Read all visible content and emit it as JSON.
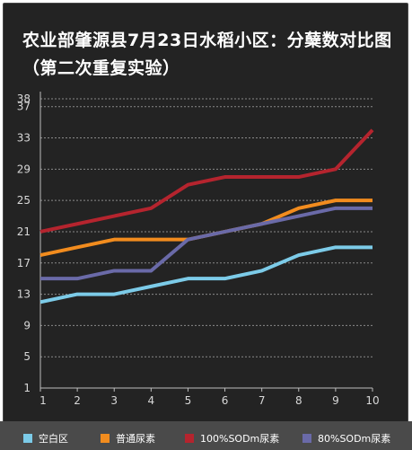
{
  "title": "农业部肇源县7月23日水稻小区：分蘖数对比图（第二次重复实验）",
  "chart_data": {
    "type": "line",
    "title": "农业部肇源县7月23日水稻小区：分蘖数对比图（第二次重复实验）",
    "xlabel": "",
    "ylabel": "",
    "x": [
      1,
      2,
      3,
      4,
      5,
      6,
      7,
      8,
      9,
      10
    ],
    "y_ticks": [
      1,
      5,
      9,
      13,
      17,
      21,
      25,
      29,
      33,
      37,
      38
    ],
    "ylim": [
      1,
      38
    ],
    "grid": true,
    "legend_position": "bottom",
    "series": [
      {
        "name": "空白区",
        "color": "#7ccbe8",
        "values": [
          12,
          13,
          13,
          14,
          15,
          15,
          16,
          18,
          19,
          19
        ]
      },
      {
        "name": "普通尿素",
        "color": "#f28c1e",
        "values": [
          18,
          19,
          20,
          20,
          20,
          21,
          22,
          24,
          25,
          25
        ]
      },
      {
        "name": "100%SODm尿素",
        "color": "#b5242e",
        "values": [
          21,
          22,
          23,
          24,
          27,
          28,
          28,
          28,
          29,
          34
        ]
      },
      {
        "name": "80%SODm尿素",
        "color": "#6a6aa8",
        "values": [
          15,
          15,
          16,
          16,
          20,
          21,
          22,
          23,
          24,
          24
        ]
      }
    ]
  }
}
